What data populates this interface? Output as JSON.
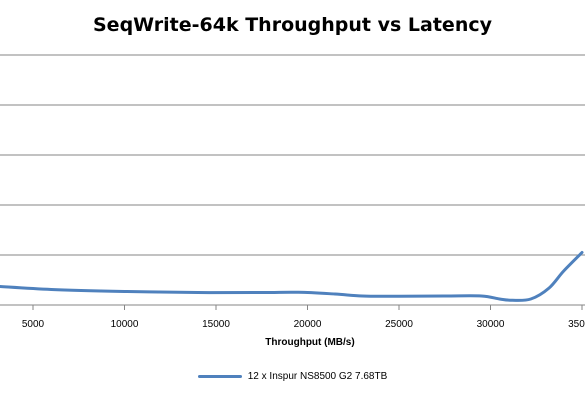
{
  "chart_data": {
    "type": "line",
    "title": "SeqWrite-64k Throughput vs Latency",
    "xlabel": "Throughput (MB/s)",
    "ylabel": "",
    "xlim": [
      3000,
      35000
    ],
    "x_ticks": [
      5000,
      10000,
      15000,
      20000,
      25000,
      30000,
      35000
    ],
    "x_tick_labels": [
      "5000",
      "10000",
      "15000",
      "20000",
      "25000",
      "30000",
      "35000"
    ],
    "y_gridline_count": 6,
    "grid": "horizontal",
    "legend_position": "bottom",
    "series": [
      {
        "name": "12 x Inspur NS8500 G2 7.68TB",
        "color": "#4f81bd",
        "points_relative": [
          [
            3000,
            0.375
          ],
          [
            6000,
            0.31
          ],
          [
            10000,
            0.27
          ],
          [
            14000,
            0.25
          ],
          [
            17500,
            0.25
          ],
          [
            19500,
            0.255
          ],
          [
            21500,
            0.22
          ],
          [
            23000,
            0.18
          ],
          [
            25000,
            0.175
          ],
          [
            27500,
            0.18
          ],
          [
            29500,
            0.18
          ],
          [
            30500,
            0.12
          ],
          [
            31200,
            0.095
          ],
          [
            32200,
            0.12
          ],
          [
            33200,
            0.34
          ],
          [
            34000,
            0.68
          ],
          [
            35000,
            1.05
          ]
        ]
      }
    ]
  }
}
